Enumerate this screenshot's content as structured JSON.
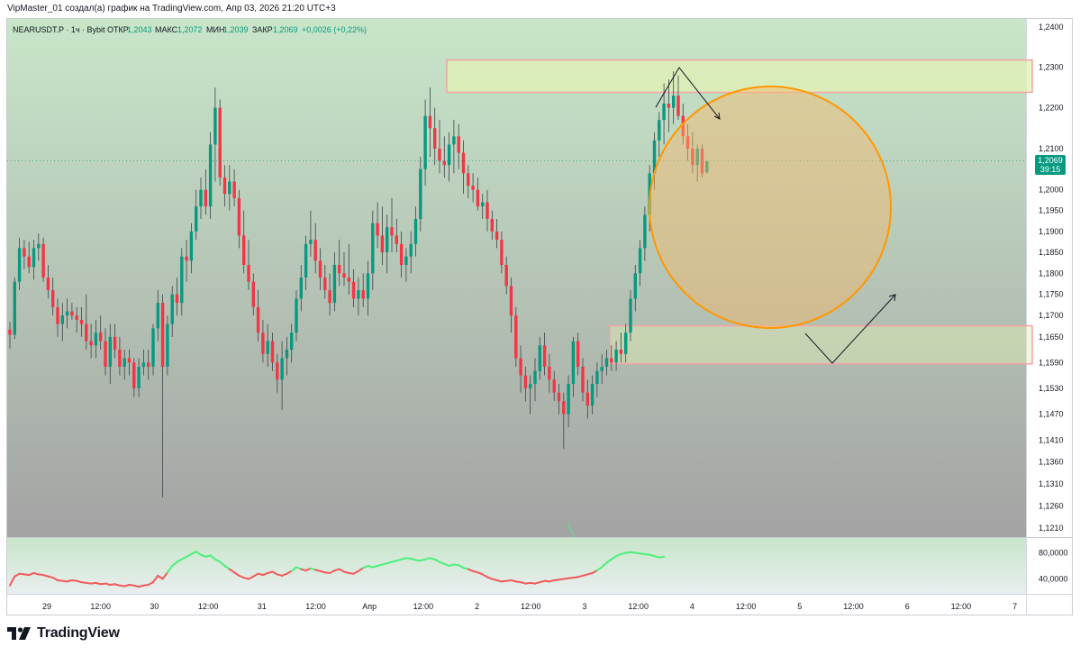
{
  "header": {
    "attribution": "VipMaster_01 создал(а) график на TradingView.com, Апр 03, 2026 21:20 UTC+3"
  },
  "legend": {
    "symbol": "NEARUSDT.P · 1ч · Bybit",
    "open_label": "ОТКР",
    "open_value": "1,2043",
    "high_label": "МАКС",
    "high_value": "1,2072",
    "low_label": "МИН",
    "low_value": "1,2039",
    "close_label": "ЗАКР",
    "close_value": "1,2069",
    "change": "+0,0026 (+0,22%)"
  },
  "price_tag": {
    "price": "1,2069",
    "countdown": "39:15"
  },
  "footer": {
    "brand": "TradingView"
  },
  "colors": {
    "up": "#089981",
    "down": "#f23645",
    "bg_top": "#c8e6c9",
    "bg_bottom": "#a2a2a2",
    "zone_fill": "#e1f0b4",
    "zone_border": "#f4a3a3",
    "circle_stroke": "#ff9800",
    "circle_fill": "#f7b76b",
    "osc_up": "#4cf07a",
    "osc_down": "#f25a5a"
  },
  "chart_data": {
    "type": "candlestick",
    "symbol": "NEARUSDT.P",
    "timeframe": "1ч",
    "y_axis": {
      "ticks": [
        "1,2400",
        "1,2300",
        "1,2200",
        "1,2100",
        "1,2000",
        "1,1950",
        "1,1900",
        "1,1850",
        "1,1800",
        "1,1750",
        "1,1700",
        "1,1650",
        "1,1590",
        "1,1530",
        "1,1470",
        "1,1410",
        "1,1360",
        "1,1310",
        "1,1260",
        "1,1210"
      ],
      "log_scale": true
    },
    "x_axis": {
      "ticks": [
        "29",
        "12:00",
        "30",
        "12:00",
        "31",
        "12:00",
        "Апр",
        "12:00",
        "2",
        "12:00",
        "3",
        "12:00",
        "4",
        "12:00",
        "5",
        "12:00",
        "6",
        "12:00",
        "7"
      ]
    },
    "candles": [
      [
        1.1667,
        1.1685,
        1.1623,
        1.1655
      ],
      [
        1.1655,
        1.179,
        1.1645,
        1.178
      ],
      [
        1.178,
        1.1885,
        1.176,
        1.186
      ],
      [
        1.186,
        1.188,
        1.181,
        1.184
      ],
      [
        1.184,
        1.1875,
        1.18,
        1.1815
      ],
      [
        1.1815,
        1.188,
        1.1785,
        1.186
      ],
      [
        1.186,
        1.1895,
        1.183,
        1.187
      ],
      [
        1.187,
        1.1885,
        1.178,
        1.179
      ],
      [
        1.179,
        1.182,
        1.174,
        1.176
      ],
      [
        1.176,
        1.179,
        1.17,
        1.172
      ],
      [
        1.172,
        1.174,
        1.165,
        1.168
      ],
      [
        1.168,
        1.173,
        1.164,
        1.17
      ],
      [
        1.17,
        1.174,
        1.167,
        1.171
      ],
      [
        1.171,
        1.173,
        1.169,
        1.17
      ],
      [
        1.17,
        1.172,
        1.166,
        1.169
      ],
      [
        1.169,
        1.172,
        1.165,
        1.168
      ],
      [
        1.168,
        1.175,
        1.162,
        1.164
      ],
      [
        1.164,
        1.168,
        1.16,
        1.163
      ],
      [
        1.163,
        1.169,
        1.16,
        1.166
      ],
      [
        1.166,
        1.17,
        1.162,
        1.164
      ],
      [
        1.164,
        1.167,
        1.156,
        1.158
      ],
      [
        1.158,
        1.168,
        1.154,
        1.165
      ],
      [
        1.165,
        1.168,
        1.16,
        1.162
      ],
      [
        1.162,
        1.165,
        1.156,
        1.158
      ],
      [
        1.158,
        1.162,
        1.155,
        1.16
      ],
      [
        1.16,
        1.162,
        1.156,
        1.159
      ],
      [
        1.159,
        1.16,
        1.151,
        1.153
      ],
      [
        1.153,
        1.16,
        1.151,
        1.158
      ],
      [
        1.158,
        1.162,
        1.156,
        1.159
      ],
      [
        1.159,
        1.162,
        1.155,
        1.158
      ],
      [
        1.158,
        1.168,
        1.156,
        1.167
      ],
      [
        1.167,
        1.176,
        1.164,
        1.173
      ],
      [
        1.173,
        1.175,
        1.128,
        1.158
      ],
      [
        1.158,
        1.17,
        1.156,
        1.168
      ],
      [
        1.168,
        1.177,
        1.165,
        1.175
      ],
      [
        1.175,
        1.179,
        1.17,
        1.173
      ],
      [
        1.173,
        1.186,
        1.17,
        1.184
      ],
      [
        1.184,
        1.188,
        1.178,
        1.183
      ],
      [
        1.183,
        1.192,
        1.18,
        1.19
      ],
      [
        1.19,
        1.2,
        1.188,
        1.196
      ],
      [
        1.196,
        1.203,
        1.193,
        1.2
      ],
      [
        1.2,
        1.205,
        1.194,
        1.196
      ],
      [
        1.196,
        1.214,
        1.193,
        1.211
      ],
      [
        1.211,
        1.225,
        1.202,
        1.22
      ],
      [
        1.22,
        1.222,
        1.201,
        1.203
      ],
      [
        1.203,
        1.206,
        1.196,
        1.199
      ],
      [
        1.199,
        1.206,
        1.195,
        1.202
      ],
      [
        1.202,
        1.205,
        1.196,
        1.198
      ],
      [
        1.198,
        1.2,
        1.186,
        1.189
      ],
      [
        1.189,
        1.195,
        1.18,
        1.182
      ],
      [
        1.182,
        1.188,
        1.176,
        1.178
      ],
      [
        1.178,
        1.18,
        1.17,
        1.172
      ],
      [
        1.172,
        1.176,
        1.164,
        1.166
      ],
      [
        1.166,
        1.169,
        1.159,
        1.161
      ],
      [
        1.161,
        1.168,
        1.158,
        1.164
      ],
      [
        1.164,
        1.166,
        1.157,
        1.159
      ],
      [
        1.159,
        1.161,
        1.152,
        1.155
      ],
      [
        1.155,
        1.164,
        1.148,
        1.16
      ],
      [
        1.16,
        1.165,
        1.156,
        1.162
      ],
      [
        1.162,
        1.168,
        1.159,
        1.166
      ],
      [
        1.166,
        1.176,
        1.164,
        1.174
      ],
      [
        1.174,
        1.182,
        1.171,
        1.179
      ],
      [
        1.179,
        1.189,
        1.176,
        1.187
      ],
      [
        1.187,
        1.195,
        1.184,
        1.188
      ],
      [
        1.188,
        1.192,
        1.18,
        1.183
      ],
      [
        1.183,
        1.186,
        1.176,
        1.179
      ],
      [
        1.179,
        1.182,
        1.174,
        1.176
      ],
      [
        1.176,
        1.18,
        1.17,
        1.173
      ],
      [
        1.173,
        1.185,
        1.171,
        1.182
      ],
      [
        1.182,
        1.188,
        1.177,
        1.18
      ],
      [
        1.18,
        1.185,
        1.177,
        1.179
      ],
      [
        1.179,
        1.187,
        1.175,
        1.178
      ],
      [
        1.178,
        1.181,
        1.172,
        1.174
      ],
      [
        1.174,
        1.179,
        1.17,
        1.176
      ],
      [
        1.176,
        1.18,
        1.172,
        1.174
      ],
      [
        1.174,
        1.183,
        1.17,
        1.18
      ],
      [
        1.18,
        1.195,
        1.176,
        1.192
      ],
      [
        1.192,
        1.197,
        1.186,
        1.189
      ],
      [
        1.189,
        1.196,
        1.182,
        1.185
      ],
      [
        1.185,
        1.194,
        1.18,
        1.191
      ],
      [
        1.191,
        1.198,
        1.185,
        1.189
      ],
      [
        1.189,
        1.193,
        1.185,
        1.187
      ],
      [
        1.187,
        1.19,
        1.179,
        1.182
      ],
      [
        1.182,
        1.186,
        1.178,
        1.184
      ],
      [
        1.184,
        1.19,
        1.18,
        1.187
      ],
      [
        1.187,
        1.196,
        1.184,
        1.193
      ],
      [
        1.193,
        1.208,
        1.19,
        1.205
      ],
      [
        1.205,
        1.222,
        1.201,
        1.218
      ],
      [
        1.218,
        1.225,
        1.208,
        1.215
      ],
      [
        1.215,
        1.22,
        1.206,
        1.21
      ],
      [
        1.21,
        1.217,
        1.204,
        1.207
      ],
      [
        1.207,
        1.213,
        1.203,
        1.206
      ],
      [
        1.206,
        1.214,
        1.202,
        1.211
      ],
      [
        1.211,
        1.217,
        1.204,
        1.213
      ],
      [
        1.213,
        1.216,
        1.205,
        1.209
      ],
      [
        1.209,
        1.212,
        1.199,
        1.204
      ],
      [
        1.204,
        1.206,
        1.198,
        1.201
      ],
      [
        1.201,
        1.204,
        1.197,
        1.2
      ],
      [
        1.2,
        1.203,
        1.195,
        1.196
      ],
      [
        1.196,
        1.199,
        1.193,
        1.197
      ],
      [
        1.197,
        1.2,
        1.19,
        1.193
      ],
      [
        1.193,
        1.195,
        1.188,
        1.19
      ],
      [
        1.19,
        1.193,
        1.186,
        1.188
      ],
      [
        1.188,
        1.19,
        1.18,
        1.182
      ],
      [
        1.182,
        1.184,
        1.175,
        1.177
      ],
      [
        1.177,
        1.179,
        1.166,
        1.17
      ],
      [
        1.17,
        1.172,
        1.158,
        1.16
      ],
      [
        1.16,
        1.163,
        1.152,
        1.156
      ],
      [
        1.156,
        1.158,
        1.15,
        1.153
      ],
      [
        1.153,
        1.156,
        1.147,
        1.154
      ],
      [
        1.154,
        1.16,
        1.15,
        1.157
      ],
      [
        1.157,
        1.165,
        1.155,
        1.163
      ],
      [
        1.163,
        1.166,
        1.156,
        1.158
      ],
      [
        1.158,
        1.161,
        1.152,
        1.155
      ],
      [
        1.155,
        1.157,
        1.15,
        1.152
      ],
      [
        1.152,
        1.154,
        1.147,
        1.15
      ],
      [
        1.15,
        1.152,
        1.139,
        1.147
      ],
      [
        1.147,
        1.156,
        1.144,
        1.154
      ],
      [
        1.154,
        1.165,
        1.151,
        1.164
      ],
      [
        1.164,
        1.166,
        1.156,
        1.158
      ],
      [
        1.158,
        1.16,
        1.15,
        1.152
      ],
      [
        1.152,
        1.155,
        1.146,
        1.149
      ],
      [
        1.149,
        1.156,
        1.147,
        1.154
      ],
      [
        1.154,
        1.159,
        1.151,
        1.157
      ],
      [
        1.157,
        1.161,
        1.154,
        1.158
      ],
      [
        1.158,
        1.162,
        1.156,
        1.16
      ],
      [
        1.16,
        1.163,
        1.157,
        1.159
      ],
      [
        1.159,
        1.164,
        1.157,
        1.162
      ],
      [
        1.162,
        1.166,
        1.159,
        1.161
      ],
      [
        1.161,
        1.168,
        1.159,
        1.166
      ],
      [
        1.166,
        1.176,
        1.164,
        1.174
      ],
      [
        1.174,
        1.182,
        1.171,
        1.18
      ],
      [
        1.18,
        1.188,
        1.177,
        1.186
      ],
      [
        1.186,
        1.196,
        1.183,
        1.194
      ],
      [
        1.194,
        1.206,
        1.19,
        1.204
      ],
      [
        1.204,
        1.214,
        1.2,
        1.212
      ],
      [
        1.212,
        1.219,
        1.208,
        1.217
      ],
      [
        1.217,
        1.226,
        1.211,
        1.221
      ],
      [
        1.221,
        1.227,
        1.214,
        1.22
      ],
      [
        1.22,
        1.229,
        1.216,
        1.223
      ],
      [
        1.223,
        1.228,
        1.217,
        1.218
      ],
      [
        1.218,
        1.221,
        1.211,
        1.213
      ],
      [
        1.213,
        1.216,
        1.207,
        1.21
      ],
      [
        1.21,
        1.214,
        1.204,
        1.206
      ],
      [
        1.206,
        1.211,
        1.202,
        1.21
      ],
      [
        1.21,
        1.211,
        1.203,
        1.204
      ],
      [
        1.2043,
        1.2072,
        1.2039,
        1.2069
      ]
    ],
    "resistance_zone": {
      "top": 1.2318,
      "bottom": 1.2238
    },
    "support_zone": {
      "top": 1.1676,
      "bottom": 1.1587
    },
    "oscillator": {
      "ticks": [
        "80,0000",
        "40,0000"
      ],
      "range": [
        20,
        100
      ],
      "values": [
        30,
        44,
        48,
        47,
        46,
        49,
        47,
        46,
        44,
        42,
        38,
        37,
        36,
        38,
        37,
        35,
        34,
        33,
        34,
        32,
        33,
        31,
        32,
        30,
        29,
        31,
        30,
        28,
        30,
        31,
        35,
        45,
        40,
        50,
        60,
        66,
        70,
        74,
        78,
        82,
        77,
        74,
        76,
        70,
        66,
        60,
        55,
        50,
        45,
        42,
        40,
        44,
        48,
        46,
        49,
        51,
        47,
        45,
        48,
        52,
        58,
        55,
        53,
        56,
        54,
        52,
        50,
        49,
        53,
        55,
        51,
        49,
        48,
        52,
        57,
        60,
        58,
        60,
        62,
        64,
        66,
        68,
        70,
        72,
        71,
        69,
        68,
        70,
        72,
        70,
        66,
        63,
        60,
        62,
        61,
        57,
        55,
        52,
        50,
        47,
        43,
        40,
        38,
        36,
        37,
        38,
        36,
        35,
        33,
        34,
        33,
        35,
        37,
        36,
        38,
        39,
        40,
        41,
        42,
        43,
        45,
        47,
        49,
        53,
        58,
        65,
        70,
        75,
        78,
        80,
        81,
        80,
        79,
        78,
        77,
        75,
        73,
        74
      ],
      "up_threshold": 55
    }
  }
}
